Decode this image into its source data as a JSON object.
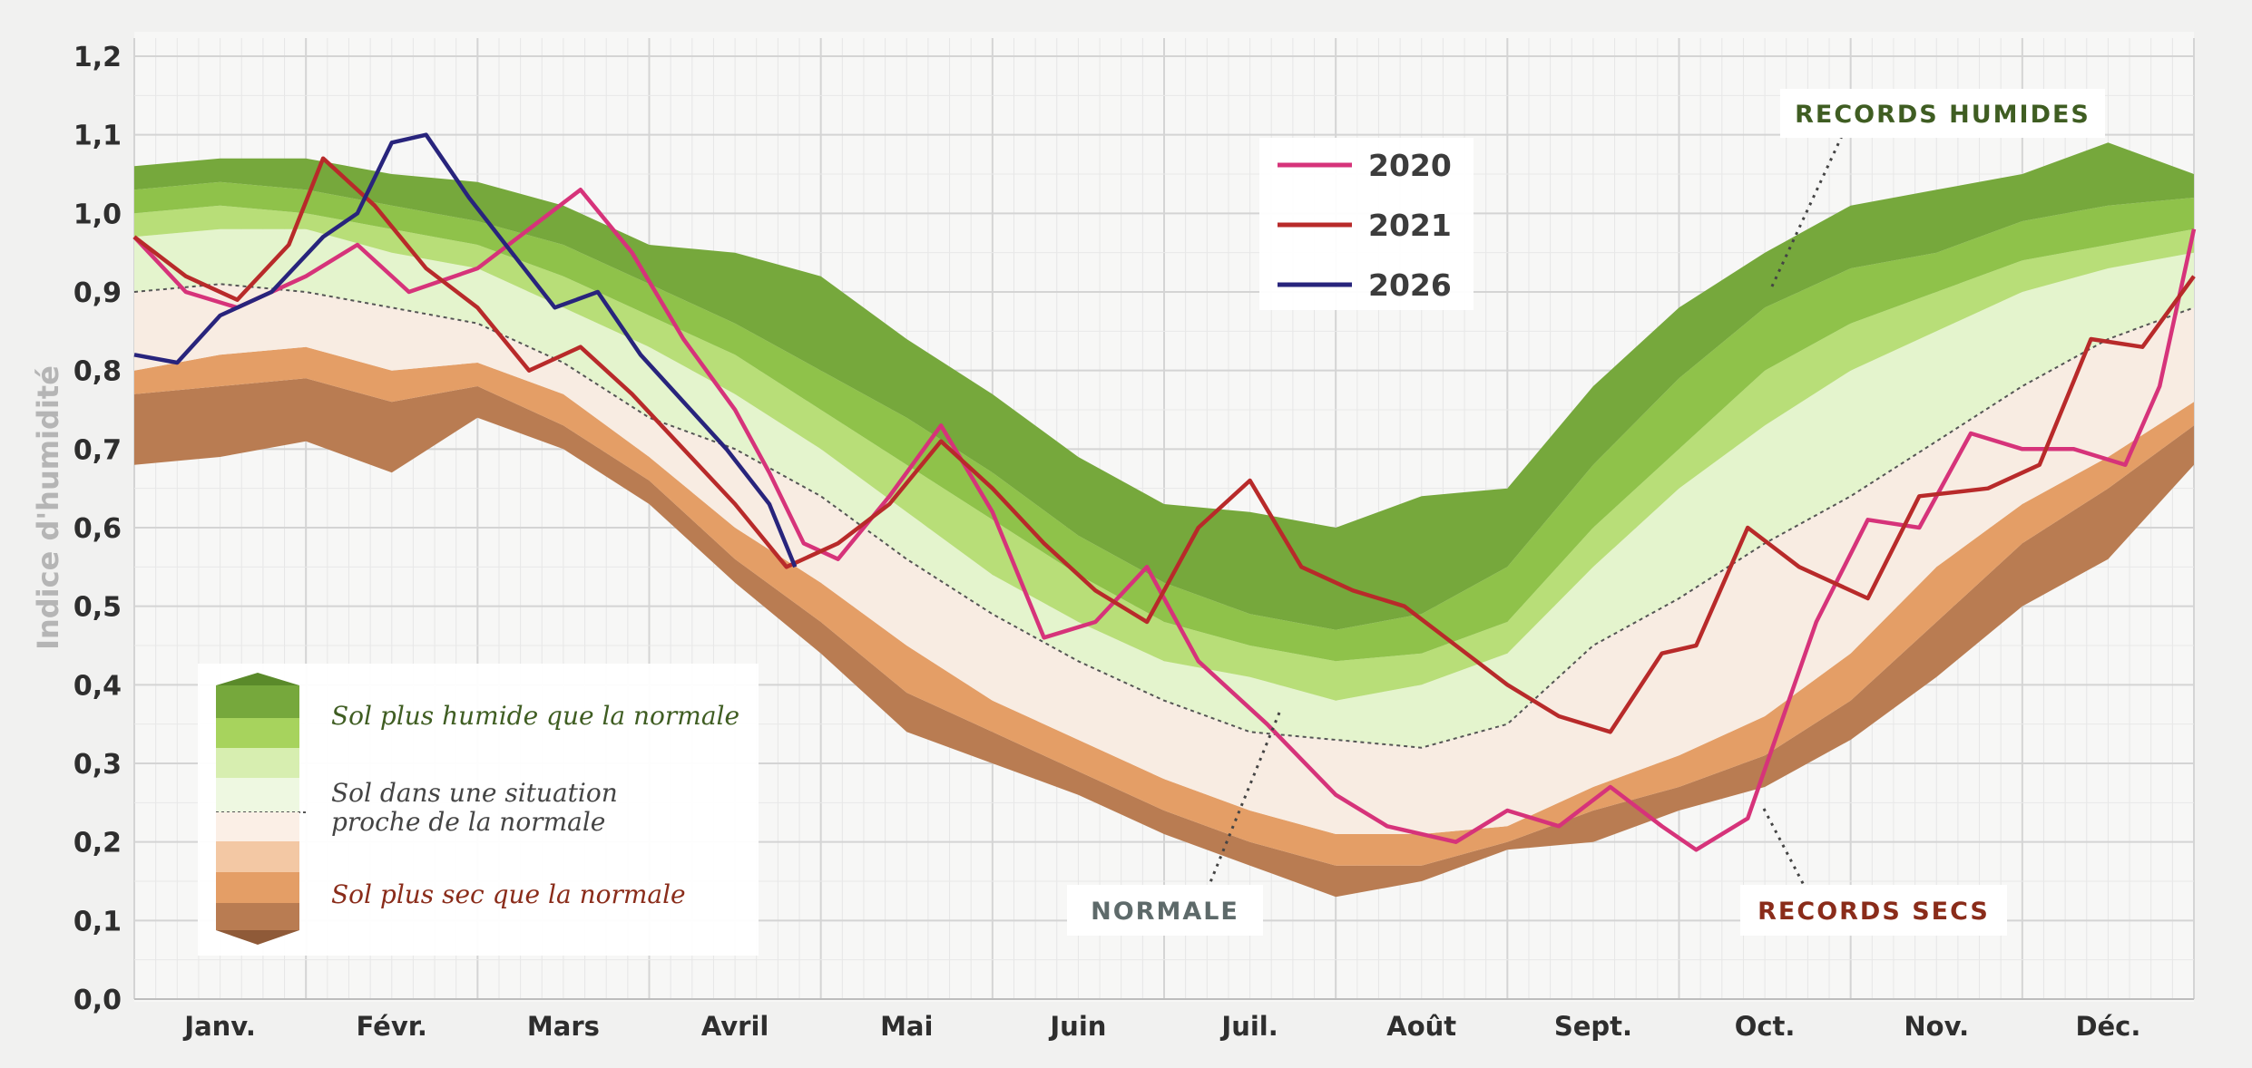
{
  "chart_data": {
    "type": "area",
    "ylabel": "Indice d'humidité",
    "ylim": [
      0,
      1.2
    ],
    "yticks": [
      "0,0",
      "0,1",
      "0,2",
      "0,3",
      "0,4",
      "0,5",
      "0,6",
      "0,7",
      "0,8",
      "0,9",
      "1,0",
      "1,1",
      "1,2"
    ],
    "categories": [
      "Janv.",
      "Févr.",
      "Mars",
      "Avril",
      "Mai",
      "Juin",
      "Juil.",
      "Août",
      "Sept.",
      "Oct.",
      "Nov.",
      "Déc."
    ],
    "x_unit": "month (0 = 1 Jan, 12 = 31 Dec)",
    "bands": {
      "x": [
        0,
        0.5,
        1,
        1.5,
        2,
        2.5,
        3,
        3.5,
        4,
        4.5,
        5,
        5.5,
        6,
        6.5,
        7,
        7.5,
        8,
        8.5,
        9,
        9.5,
        10,
        10.5,
        11,
        11.5,
        12
      ],
      "records_secs": [
        0.68,
        0.69,
        0.71,
        0.67,
        0.74,
        0.7,
        0.63,
        0.53,
        0.44,
        0.34,
        0.3,
        0.26,
        0.21,
        0.17,
        0.13,
        0.15,
        0.19,
        0.2,
        0.24,
        0.27,
        0.33,
        0.41,
        0.5,
        0.56,
        0.68
      ],
      "sec_1": [
        0.77,
        0.78,
        0.79,
        0.76,
        0.78,
        0.73,
        0.66,
        0.56,
        0.48,
        0.39,
        0.34,
        0.29,
        0.24,
        0.2,
        0.17,
        0.17,
        0.2,
        0.24,
        0.27,
        0.31,
        0.38,
        0.48,
        0.58,
        0.65,
        0.73
      ],
      "sec_2": [
        0.8,
        0.82,
        0.83,
        0.8,
        0.81,
        0.77,
        0.69,
        0.6,
        0.53,
        0.45,
        0.38,
        0.33,
        0.28,
        0.24,
        0.21,
        0.21,
        0.22,
        0.27,
        0.31,
        0.36,
        0.44,
        0.55,
        0.63,
        0.69,
        0.76
      ],
      "normale": [
        0.9,
        0.91,
        0.9,
        0.88,
        0.86,
        0.81,
        0.74,
        0.7,
        0.64,
        0.56,
        0.49,
        0.43,
        0.38,
        0.34,
        0.33,
        0.32,
        0.35,
        0.45,
        0.51,
        0.58,
        0.64,
        0.71,
        0.78,
        0.84,
        0.88
      ],
      "hum_1": [
        0.97,
        0.98,
        0.98,
        0.95,
        0.93,
        0.88,
        0.83,
        0.77,
        0.7,
        0.62,
        0.54,
        0.48,
        0.43,
        0.41,
        0.38,
        0.4,
        0.44,
        0.55,
        0.65,
        0.73,
        0.8,
        0.85,
        0.9,
        0.93,
        0.95
      ],
      "hum_2": [
        1.0,
        1.01,
        1.0,
        0.98,
        0.96,
        0.92,
        0.87,
        0.82,
        0.75,
        0.68,
        0.61,
        0.54,
        0.48,
        0.45,
        0.43,
        0.44,
        0.48,
        0.6,
        0.7,
        0.8,
        0.86,
        0.9,
        0.94,
        0.96,
        0.98
      ],
      "hum_3": [
        1.03,
        1.04,
        1.03,
        1.01,
        0.99,
        0.96,
        0.91,
        0.86,
        0.8,
        0.74,
        0.67,
        0.59,
        0.53,
        0.49,
        0.47,
        0.49,
        0.55,
        0.68,
        0.79,
        0.88,
        0.93,
        0.95,
        0.99,
        1.01,
        1.02
      ],
      "records_humides": [
        1.06,
        1.07,
        1.07,
        1.05,
        1.04,
        1.01,
        0.96,
        0.95,
        0.92,
        0.84,
        0.77,
        0.69,
        0.63,
        0.62,
        0.6,
        0.64,
        0.65,
        0.78,
        0.88,
        0.95,
        1.01,
        1.03,
        1.05,
        1.09,
        1.05
      ]
    },
    "series": [
      {
        "name": "2020",
        "color": "#d6337a",
        "x": [
          0,
          0.3,
          0.6,
          1,
          1.3,
          1.6,
          2,
          2.3,
          2.6,
          2.9,
          3.2,
          3.5,
          3.7,
          3.9,
          4.1,
          4.4,
          4.7,
          5,
          5.3,
          5.6,
          5.9,
          6.2,
          6.6,
          7,
          7.3,
          7.7,
          8,
          8.3,
          8.6,
          8.9,
          9.1,
          9.4,
          9.8,
          10.1,
          10.4,
          10.7,
          11,
          11.3,
          11.6,
          11.8,
          12
        ],
        "y": [
          0.97,
          0.9,
          0.88,
          0.92,
          0.96,
          0.9,
          0.93,
          0.98,
          1.03,
          0.95,
          0.84,
          0.75,
          0.67,
          0.58,
          0.56,
          0.64,
          0.73,
          0.62,
          0.46,
          0.48,
          0.55,
          0.43,
          0.35,
          0.26,
          0.22,
          0.2,
          0.24,
          0.22,
          0.27,
          0.22,
          0.19,
          0.23,
          0.48,
          0.61,
          0.6,
          0.72,
          0.7,
          0.7,
          0.68,
          0.78,
          0.98
        ]
      },
      {
        "name": "2021",
        "color": "#b82a2a",
        "x": [
          0,
          0.3,
          0.6,
          0.9,
          1.1,
          1.4,
          1.7,
          2,
          2.3,
          2.6,
          2.9,
          3.2,
          3.5,
          3.8,
          4.1,
          4.4,
          4.7,
          5,
          5.3,
          5.6,
          5.9,
          6.2,
          6.5,
          6.8,
          7.1,
          7.4,
          7.7,
          8,
          8.3,
          8.6,
          8.9,
          9.1,
          9.4,
          9.7,
          10.1,
          10.4,
          10.8,
          11.1,
          11.4,
          11.7,
          12
        ],
        "y": [
          0.97,
          0.92,
          0.89,
          0.96,
          1.07,
          1.01,
          0.93,
          0.88,
          0.8,
          0.83,
          0.77,
          0.7,
          0.63,
          0.55,
          0.58,
          0.63,
          0.71,
          0.65,
          0.58,
          0.52,
          0.48,
          0.6,
          0.66,
          0.55,
          0.52,
          0.5,
          0.45,
          0.4,
          0.36,
          0.34,
          0.44,
          0.45,
          0.6,
          0.55,
          0.51,
          0.64,
          0.65,
          0.68,
          0.84,
          0.83,
          0.92
        ]
      },
      {
        "name": "2026",
        "color": "#28247c",
        "x": [
          0,
          0.25,
          0.5,
          0.8,
          1.1,
          1.3,
          1.5,
          1.7,
          1.95,
          2.2,
          2.45,
          2.7,
          2.95,
          3.2,
          3.45,
          3.7,
          3.85
        ],
        "y": [
          0.82,
          0.81,
          0.87,
          0.9,
          0.97,
          1.0,
          1.09,
          1.1,
          1.02,
          0.95,
          0.88,
          0.9,
          0.82,
          0.76,
          0.7,
          0.63,
          0.55
        ]
      }
    ],
    "legend": {
      "position": "top-center",
      "entries": [
        "2020",
        "2021",
        "2026"
      ]
    },
    "band_legend": {
      "position": "bottom-left",
      "entries": [
        "Sol plus humide que la normale",
        "Sol dans une situation",
        "proche de la normale",
        "Sol plus sec que la normale"
      ]
    },
    "annotations": {
      "records_humides": "RECORDS HUMIDES",
      "records_secs": "RECORDS SECS",
      "normale": "NORMALE"
    },
    "grid": true
  },
  "colors": {
    "background": "#f1f1f0",
    "plot_bg": "#f7f7f6",
    "hum_dark": "#76a83c",
    "hum_mid": "#8fc24a",
    "hum_light": "#b8de78",
    "hum_pale": "#e4f4cd",
    "near_normal_dry": "#f8ece2",
    "sec_light": "#f3c8a4",
    "sec_mid": "#e49e66",
    "sec_dark": "#b97c52",
    "dry_text": "#8a2c1a",
    "wet_text": "#3f5d22"
  }
}
